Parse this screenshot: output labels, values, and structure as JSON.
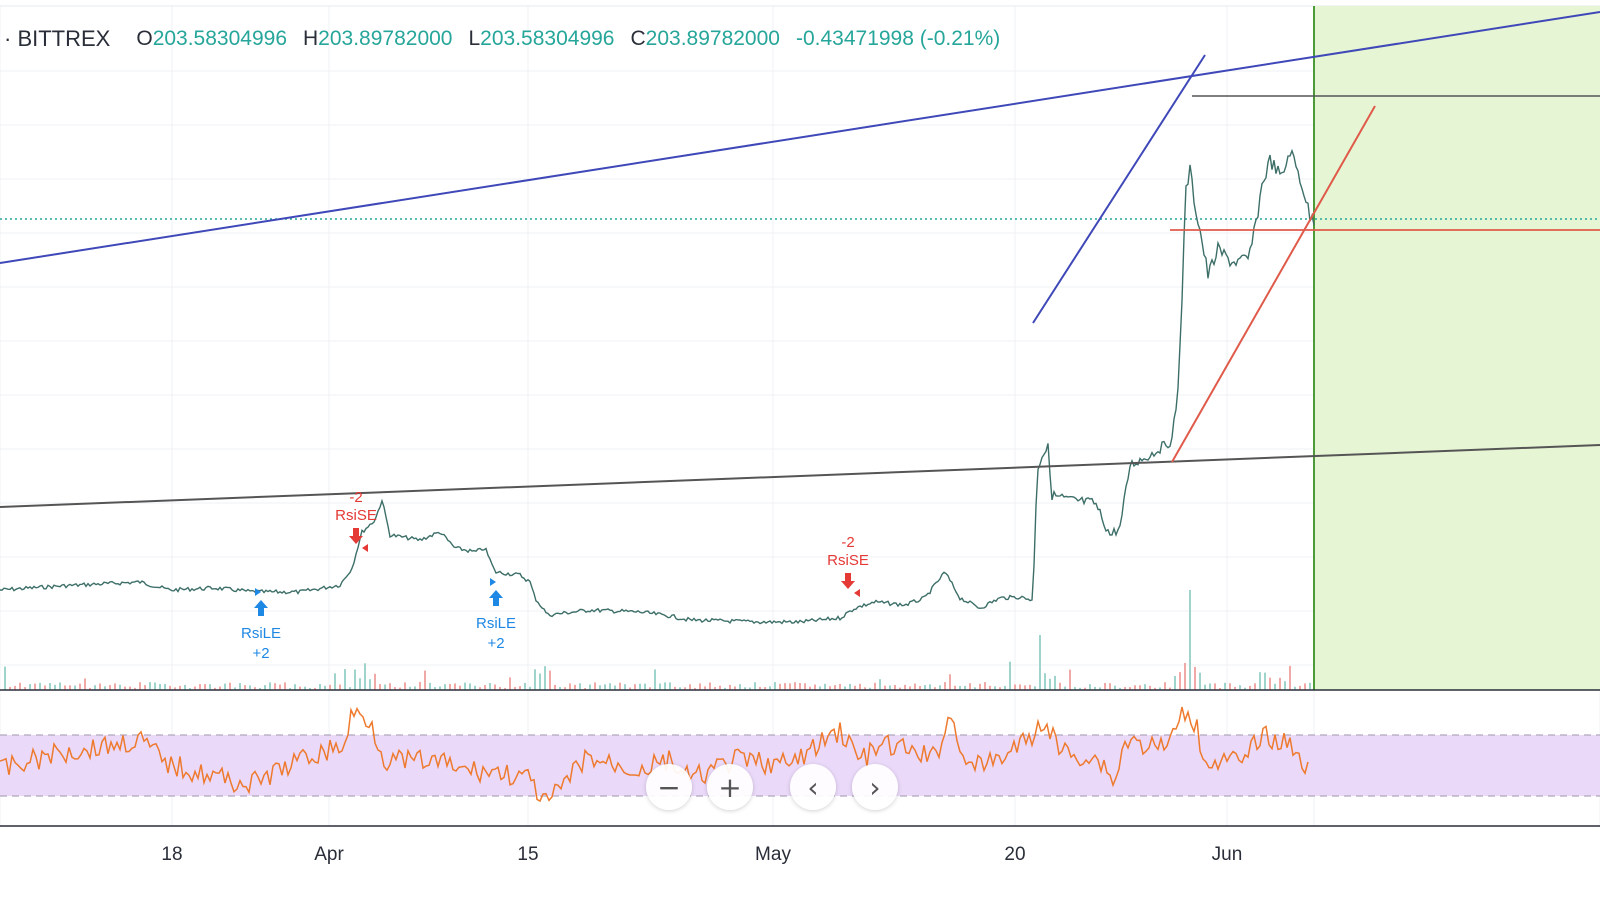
{
  "legend": {
    "symbol": "· BITTREX",
    "open_key": "O",
    "open": "203.58304996",
    "high_key": "H",
    "high": "203.89782000",
    "low_key": "L",
    "low": "203.58304996",
    "close_key": "C",
    "close": "203.89782000",
    "change": "-0.43471998 (-0.21%)"
  },
  "controls": {
    "zoom_out": "−",
    "zoom_in": "+",
    "scroll_left": "‹",
    "scroll_right": "›"
  },
  "chart_data": {
    "type": "line",
    "x_ticks": [
      "18",
      "Apr",
      "15",
      "May",
      "20",
      "Jun"
    ],
    "signals": [
      {
        "type": "long",
        "label": "RsiLE",
        "qty": "+2"
      },
      {
        "type": "short",
        "label": "RsiSE",
        "qty": "-2"
      },
      {
        "type": "long",
        "label": "RsiLE",
        "qty": "+2"
      },
      {
        "type": "short",
        "label": "RsiSE",
        "qty": "-2"
      }
    ],
    "colors": {
      "price_line": "#3d6f68",
      "channel_upper": "#3f48b8",
      "channel_lower": "#555555",
      "red_trend": "#e05a4a",
      "rsi_line": "#ee7a2e",
      "rsi_band": "#ead9f9",
      "forecast_zone": "#e6f5d4",
      "forecast_border": "#4c9a3a",
      "long_signal": "#1e88e5",
      "short_signal": "#e53935"
    }
  }
}
